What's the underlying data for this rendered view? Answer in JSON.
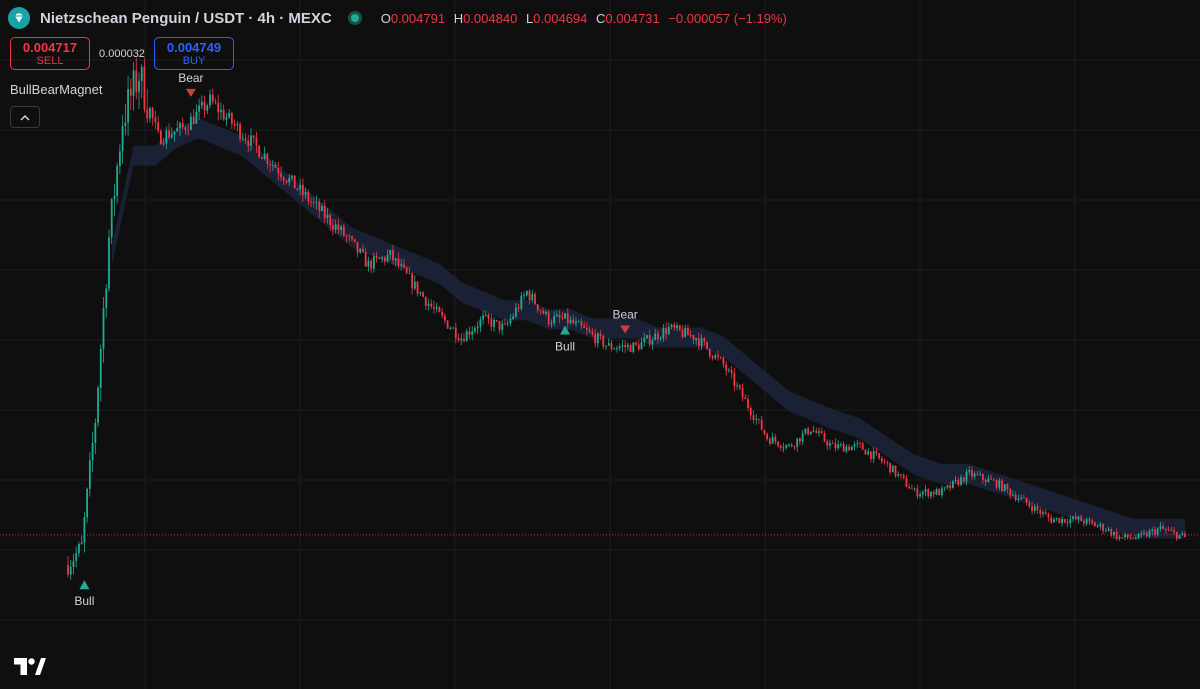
{
  "header": {
    "symbol": "Nietzschean Penguin / USDT · 4h · MEXC",
    "open_key": "O",
    "open": "0.004791",
    "high_key": "H",
    "high": "0.004840",
    "low_key": "L",
    "low": "0.004694",
    "close_key": "C",
    "close": "0.004731",
    "change": "−0.000057 (−1.19%)"
  },
  "trade": {
    "sell_price": "0.004717",
    "sell_label": "SELL",
    "spread": "0.000032",
    "buy_price": "0.004749",
    "buy_label": "BUY"
  },
  "indicator": {
    "name": "BullBearMagnet"
  },
  "icons": {
    "logo": "diamond-icon",
    "collapse": "chevron-up-icon",
    "brand": "tradingview-logo-icon"
  },
  "colors": {
    "up": "#22ab94",
    "down": "#f23645",
    "band": "#1c2438",
    "background": "#0f0f0f",
    "grid": "#1c1c1c",
    "price_line": "#f23645"
  },
  "chart_data": {
    "type": "candlestick",
    "title": "Nietzschean Penguin / USDT · 4h · MEXC",
    "price_range": [
      0.0037,
      0.0102
    ],
    "last_price": 0.004731,
    "grid": true,
    "price_path": [
      [
        0,
        0.0044
      ],
      [
        5,
        0.0046
      ],
      [
        10,
        0.006
      ],
      [
        15,
        0.008
      ],
      [
        20,
        0.0093
      ],
      [
        26,
        0.0098
      ],
      [
        33,
        0.0091
      ],
      [
        42,
        0.0092
      ],
      [
        52,
        0.0095
      ],
      [
        62,
        0.0092
      ],
      [
        72,
        0.0089
      ],
      [
        82,
        0.0086
      ],
      [
        92,
        0.0083
      ],
      [
        102,
        0.008
      ],
      [
        110,
        0.0077
      ],
      [
        118,
        0.0078
      ],
      [
        126,
        0.0075
      ],
      [
        134,
        0.0072
      ],
      [
        144,
        0.0069
      ],
      [
        152,
        0.0071
      ],
      [
        160,
        0.007
      ],
      [
        168,
        0.0074
      ],
      [
        176,
        0.0071
      ],
      [
        182,
        0.0071
      ],
      [
        188,
        0.007
      ],
      [
        198,
        0.0068
      ],
      [
        208,
        0.0068
      ],
      [
        220,
        0.007
      ],
      [
        230,
        0.0069
      ],
      [
        240,
        0.0066
      ],
      [
        248,
        0.0062
      ],
      [
        256,
        0.0058
      ],
      [
        264,
        0.0057
      ],
      [
        272,
        0.0059
      ],
      [
        280,
        0.0057
      ],
      [
        290,
        0.0057
      ],
      [
        300,
        0.0055
      ],
      [
        310,
        0.0052
      ],
      [
        320,
        0.0052
      ],
      [
        330,
        0.0054
      ],
      [
        340,
        0.0053
      ],
      [
        350,
        0.0051
      ],
      [
        360,
        0.0049
      ],
      [
        370,
        0.0049
      ],
      [
        380,
        0.0048
      ],
      [
        385,
        0.0047
      ],
      [
        392,
        0.0047
      ],
      [
        400,
        0.0048
      ],
      [
        409,
        0.0047
      ]
    ],
    "band_path": [
      [
        16,
        0.0078
      ],
      [
        24,
        0.0089
      ],
      [
        32,
        0.0089
      ],
      [
        40,
        0.0091
      ],
      [
        48,
        0.0092
      ],
      [
        56,
        0.0091
      ],
      [
        64,
        0.009
      ],
      [
        72,
        0.0088
      ],
      [
        80,
        0.0086
      ],
      [
        88,
        0.0084
      ],
      [
        96,
        0.0082
      ],
      [
        104,
        0.008
      ],
      [
        112,
        0.0079
      ],
      [
        120,
        0.0078
      ],
      [
        128,
        0.0077
      ],
      [
        136,
        0.0076
      ],
      [
        144,
        0.0074
      ],
      [
        152,
        0.0073
      ],
      [
        160,
        0.0072
      ],
      [
        168,
        0.0072
      ],
      [
        176,
        0.0071
      ],
      [
        184,
        0.0071
      ],
      [
        192,
        0.007
      ],
      [
        200,
        0.007
      ],
      [
        208,
        0.007
      ],
      [
        216,
        0.0069
      ],
      [
        224,
        0.0069
      ],
      [
        232,
        0.0069
      ],
      [
        240,
        0.0068
      ],
      [
        248,
        0.0066
      ],
      [
        256,
        0.0064
      ],
      [
        264,
        0.0062
      ],
      [
        272,
        0.0061
      ],
      [
        280,
        0.006
      ],
      [
        290,
        0.0059
      ],
      [
        300,
        0.0057
      ],
      [
        310,
        0.0055
      ],
      [
        320,
        0.0054
      ],
      [
        330,
        0.0054
      ],
      [
        340,
        0.0053
      ],
      [
        350,
        0.0052
      ],
      [
        360,
        0.0051
      ],
      [
        370,
        0.005
      ],
      [
        380,
        0.0049
      ],
      [
        390,
        0.0048
      ],
      [
        400,
        0.0048
      ],
      [
        409,
        0.0048
      ]
    ],
    "band_width": 0.00011,
    "signals": [
      {
        "type": "bull",
        "label": "Bull",
        "bar": 6,
        "price": 0.0042
      },
      {
        "type": "bear",
        "label": "Bear",
        "bar": 45,
        "price": 0.0096
      },
      {
        "type": "bull",
        "label": "Bull",
        "bar": 182,
        "price": 0.007
      },
      {
        "type": "bear",
        "label": "Bear",
        "bar": 204,
        "price": 0.007
      }
    ],
    "bar_count": 410
  }
}
